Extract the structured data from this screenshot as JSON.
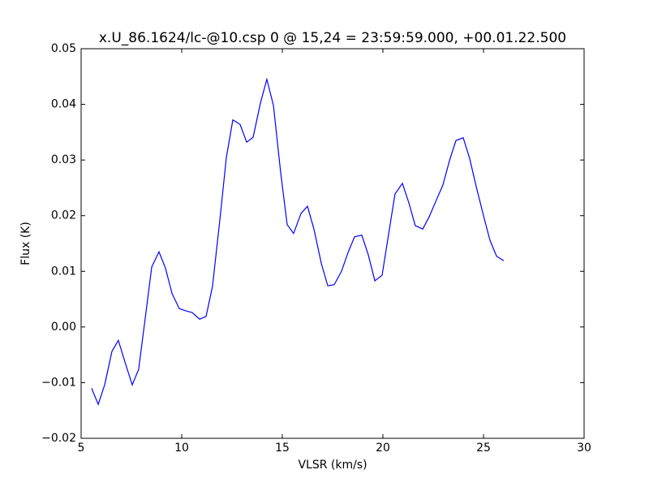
{
  "chart_data": {
    "type": "line",
    "title": "x.U_86.1624/lc-@10.csp 0 @ 15,24 = 23:59:59.000, +00.01.22.500",
    "xlabel": "VLSR (km/s)",
    "ylabel": "Flux (K)",
    "x": [
      5.52,
      5.85,
      6.17,
      6.53,
      6.85,
      7.18,
      7.54,
      7.86,
      8.19,
      8.51,
      8.87,
      9.19,
      9.52,
      9.88,
      10.2,
      10.52,
      10.89,
      11.21,
      11.53,
      11.9,
      12.22,
      12.54,
      12.9,
      13.23,
      13.55,
      13.91,
      14.23,
      14.56,
      14.92,
      15.24,
      15.56,
      15.93,
      16.25,
      16.57,
      16.94,
      17.26,
      17.58,
      17.94,
      18.27,
      18.59,
      18.95,
      19.27,
      19.6,
      19.96,
      20.28,
      20.6,
      20.97,
      21.29,
      21.61,
      21.98,
      22.3,
      22.62,
      22.98,
      23.31,
      23.63,
      23.99,
      24.31,
      24.64,
      25.0,
      25.32,
      25.65,
      26.01
    ],
    "series": [
      {
        "name": "Flux",
        "color": "#0000ff",
        "values": [
          -0.011,
          -0.0139,
          -0.0104,
          -0.0044,
          -0.0024,
          -0.0063,
          -0.0104,
          -0.0076,
          0.0017,
          0.0108,
          0.0135,
          0.0106,
          0.006,
          0.0033,
          0.0029,
          0.0026,
          0.0014,
          0.0019,
          0.0073,
          0.0194,
          0.0305,
          0.0372,
          0.0364,
          0.0332,
          0.0341,
          0.0402,
          0.0445,
          0.0398,
          0.0277,
          0.0184,
          0.0168,
          0.0204,
          0.0217,
          0.0176,
          0.0114,
          0.0074,
          0.0076,
          0.01,
          0.0134,
          0.0162,
          0.0165,
          0.013,
          0.0083,
          0.0093,
          0.0166,
          0.0239,
          0.0258,
          0.0223,
          0.0182,
          0.0176,
          0.0198,
          0.0225,
          0.0255,
          0.0299,
          0.0335,
          0.034,
          0.0303,
          0.0252,
          0.02,
          0.0156,
          0.0127,
          0.0119
        ]
      }
    ],
    "xlim": [
      5,
      30
    ],
    "xticks": [
      5,
      10,
      15,
      20,
      25,
      30
    ],
    "ylim": [
      -0.02,
      0.05
    ],
    "yticks": [
      {
        "value": -0.02,
        "label": "−0.02"
      },
      {
        "value": -0.01,
        "label": "−0.01"
      },
      {
        "value": 0,
        "label": "0.00"
      },
      0.01,
      0.02,
      0.03,
      0.04,
      0.05
    ],
    "grid": false
  }
}
